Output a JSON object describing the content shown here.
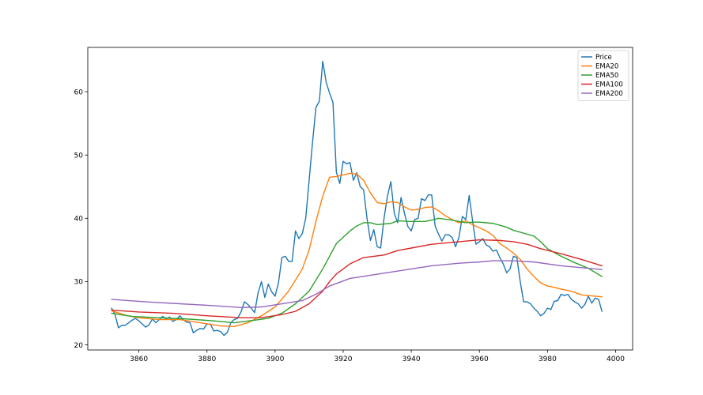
{
  "chart_data": {
    "type": "line",
    "title": "",
    "xlabel": "",
    "ylabel": "",
    "xlim": [
      3845,
      4005
    ],
    "ylim": [
      19.2,
      67.0
    ],
    "x_ticks": [
      3860,
      3880,
      3900,
      3920,
      3940,
      3960,
      3980,
      4000
    ],
    "y_ticks": [
      20,
      30,
      40,
      50,
      60
    ],
    "grid": false,
    "legend_position": "upper right",
    "series": [
      {
        "name": "Price",
        "color": "#1f77b4",
        "points": [
          [
            3852,
            25.8
          ],
          [
            3853,
            24.8
          ],
          [
            3854,
            22.7
          ],
          [
            3855,
            23.1
          ],
          [
            3856,
            23.1
          ],
          [
            3857,
            23.5
          ],
          [
            3858,
            23.9
          ],
          [
            3859,
            24.2
          ],
          [
            3860,
            23.8
          ],
          [
            3861,
            23.3
          ],
          [
            3862,
            22.8
          ],
          [
            3863,
            23.2
          ],
          [
            3864,
            24.1
          ],
          [
            3865,
            23.5
          ],
          [
            3866,
            24.0
          ],
          [
            3867,
            24.5
          ],
          [
            3868,
            24.1
          ],
          [
            3869,
            24.4
          ],
          [
            3870,
            23.7
          ],
          [
            3871,
            24.0
          ],
          [
            3872,
            24.6
          ],
          [
            3873,
            24.0
          ],
          [
            3874,
            23.6
          ],
          [
            3875,
            23.5
          ],
          [
            3876,
            21.9
          ],
          [
            3877,
            22.3
          ],
          [
            3878,
            22.6
          ],
          [
            3879,
            22.5
          ],
          [
            3880,
            23.3
          ],
          [
            3881,
            23.3
          ],
          [
            3882,
            22.2
          ],
          [
            3883,
            22.3
          ],
          [
            3884,
            22.1
          ],
          [
            3885,
            21.5
          ],
          [
            3886,
            22.0
          ],
          [
            3887,
            23.5
          ],
          [
            3888,
            24.0
          ],
          [
            3889,
            24.2
          ],
          [
            3890,
            25.2
          ],
          [
            3891,
            26.8
          ],
          [
            3892,
            26.4
          ],
          [
            3893,
            25.8
          ],
          [
            3894,
            25.1
          ],
          [
            3895,
            28.2
          ],
          [
            3896,
            30.0
          ],
          [
            3897,
            27.5
          ],
          [
            3898,
            29.6
          ],
          [
            3899,
            28.4
          ],
          [
            3900,
            27.7
          ],
          [
            3901,
            29.8
          ],
          [
            3902,
            33.8
          ],
          [
            3903,
            34.0
          ],
          [
            3904,
            33.2
          ],
          [
            3905,
            33.2
          ],
          [
            3906,
            38.0
          ],
          [
            3907,
            36.8
          ],
          [
            3908,
            37.6
          ],
          [
            3909,
            40.0
          ],
          [
            3910,
            46.0
          ],
          [
            3911,
            52.0
          ],
          [
            3912,
            57.5
          ],
          [
            3913,
            58.5
          ],
          [
            3914,
            64.8
          ],
          [
            3915,
            61.5
          ],
          [
            3916,
            59.8
          ],
          [
            3917,
            58.3
          ],
          [
            3918,
            47.3
          ],
          [
            3919,
            45.5
          ],
          [
            3920,
            49.0
          ],
          [
            3921,
            48.6
          ],
          [
            3922,
            48.8
          ],
          [
            3923,
            46.0
          ],
          [
            3924,
            47.2
          ],
          [
            3925,
            45.0
          ],
          [
            3926,
            44.5
          ],
          [
            3927,
            40.0
          ],
          [
            3928,
            36.5
          ],
          [
            3929,
            38.2
          ],
          [
            3930,
            35.5
          ],
          [
            3931,
            35.3
          ],
          [
            3932,
            40.0
          ],
          [
            3933,
            43.5
          ],
          [
            3934,
            45.8
          ],
          [
            3935,
            40.8
          ],
          [
            3936,
            39.3
          ],
          [
            3937,
            43.3
          ],
          [
            3938,
            40.8
          ],
          [
            3939,
            38.7
          ],
          [
            3940,
            38.0
          ],
          [
            3941,
            39.8
          ],
          [
            3942,
            40.0
          ],
          [
            3943,
            43.1
          ],
          [
            3944,
            42.8
          ],
          [
            3945,
            43.7
          ],
          [
            3946,
            43.7
          ],
          [
            3947,
            38.8
          ],
          [
            3948,
            37.5
          ],
          [
            3949,
            36.4
          ],
          [
            3950,
            37.4
          ],
          [
            3951,
            37.4
          ],
          [
            3952,
            37.0
          ],
          [
            3953,
            35.5
          ],
          [
            3954,
            37.0
          ],
          [
            3955,
            40.3
          ],
          [
            3956,
            39.8
          ],
          [
            3957,
            43.6
          ],
          [
            3958,
            39.6
          ],
          [
            3959,
            35.9
          ],
          [
            3960,
            36.3
          ],
          [
            3961,
            36.8
          ],
          [
            3962,
            35.8
          ],
          [
            3963,
            35.5
          ],
          [
            3964,
            34.8
          ],
          [
            3965,
            35.0
          ],
          [
            3966,
            33.8
          ],
          [
            3967,
            32.8
          ],
          [
            3968,
            31.4
          ],
          [
            3969,
            32.0
          ],
          [
            3970,
            34.0
          ],
          [
            3971,
            33.8
          ],
          [
            3972,
            30.0
          ],
          [
            3973,
            26.8
          ],
          [
            3974,
            26.8
          ],
          [
            3975,
            26.5
          ],
          [
            3976,
            25.8
          ],
          [
            3977,
            25.3
          ],
          [
            3978,
            24.6
          ],
          [
            3979,
            25.0
          ],
          [
            3980,
            25.8
          ],
          [
            3981,
            25.6
          ],
          [
            3982,
            26.9
          ],
          [
            3983,
            27.0
          ],
          [
            3984,
            28.0
          ],
          [
            3985,
            27.8
          ],
          [
            3986,
            28.0
          ],
          [
            3987,
            27.2
          ],
          [
            3988,
            26.8
          ],
          [
            3989,
            26.5
          ],
          [
            3990,
            25.8
          ],
          [
            3991,
            26.4
          ],
          [
            3992,
            27.7
          ],
          [
            3993,
            26.6
          ],
          [
            3994,
            27.4
          ],
          [
            3995,
            27.2
          ],
          [
            3996,
            25.3
          ]
        ]
      },
      {
        "name": "EMA20",
        "color": "#ff7f0e",
        "points": [
          [
            3852,
            25.4
          ],
          [
            3856,
            24.7
          ],
          [
            3860,
            24.3
          ],
          [
            3866,
            24.0
          ],
          [
            3872,
            24.0
          ],
          [
            3878,
            23.5
          ],
          [
            3884,
            23.0
          ],
          [
            3888,
            22.9
          ],
          [
            3892,
            23.5
          ],
          [
            3896,
            24.6
          ],
          [
            3900,
            26.0
          ],
          [
            3904,
            28.5
          ],
          [
            3908,
            32.0
          ],
          [
            3910,
            35.0
          ],
          [
            3912,
            39.5
          ],
          [
            3914,
            43.5
          ],
          [
            3916,
            46.5
          ],
          [
            3918,
            46.6
          ],
          [
            3922,
            47.1
          ],
          [
            3924,
            47.0
          ],
          [
            3926,
            46.0
          ],
          [
            3928,
            44.0
          ],
          [
            3930,
            42.5
          ],
          [
            3932,
            42.3
          ],
          [
            3934,
            42.6
          ],
          [
            3936,
            42.5
          ],
          [
            3938,
            41.8
          ],
          [
            3940,
            41.3
          ],
          [
            3942,
            41.4
          ],
          [
            3944,
            41.7
          ],
          [
            3946,
            41.8
          ],
          [
            3948,
            41.2
          ],
          [
            3950,
            40.4
          ],
          [
            3952,
            39.8
          ],
          [
            3954,
            39.3
          ],
          [
            3956,
            39.6
          ],
          [
            3958,
            39.0
          ],
          [
            3960,
            38.5
          ],
          [
            3962,
            38.0
          ],
          [
            3964,
            37.3
          ],
          [
            3966,
            36.0
          ],
          [
            3968,
            35.3
          ],
          [
            3970,
            34.5
          ],
          [
            3972,
            33.5
          ],
          [
            3974,
            32.0
          ],
          [
            3976,
            30.8
          ],
          [
            3978,
            29.8
          ],
          [
            3980,
            29.3
          ],
          [
            3982,
            29.1
          ],
          [
            3984,
            28.8
          ],
          [
            3986,
            28.6
          ],
          [
            3988,
            28.3
          ],
          [
            3990,
            27.9
          ],
          [
            3992,
            27.8
          ],
          [
            3994,
            27.7
          ],
          [
            3996,
            27.6
          ]
        ]
      },
      {
        "name": "EMA50",
        "color": "#2ca02c",
        "points": [
          [
            3852,
            25.0
          ],
          [
            3858,
            24.5
          ],
          [
            3866,
            24.3
          ],
          [
            3874,
            24.1
          ],
          [
            3882,
            23.8
          ],
          [
            3888,
            23.5
          ],
          [
            3894,
            23.9
          ],
          [
            3898,
            24.2
          ],
          [
            3902,
            25.0
          ],
          [
            3906,
            26.5
          ],
          [
            3910,
            28.5
          ],
          [
            3914,
            32.0
          ],
          [
            3916,
            34.0
          ],
          [
            3918,
            36.0
          ],
          [
            3920,
            37.0
          ],
          [
            3922,
            38.0
          ],
          [
            3924,
            38.8
          ],
          [
            3926,
            39.3
          ],
          [
            3928,
            39.3
          ],
          [
            3930,
            39.0
          ],
          [
            3934,
            39.2
          ],
          [
            3936,
            39.6
          ],
          [
            3940,
            39.5
          ],
          [
            3944,
            39.5
          ],
          [
            3946,
            39.7
          ],
          [
            3948,
            40.0
          ],
          [
            3952,
            39.7
          ],
          [
            3956,
            39.3
          ],
          [
            3958,
            39.4
          ],
          [
            3960,
            39.4
          ],
          [
            3964,
            39.2
          ],
          [
            3968,
            38.6
          ],
          [
            3970,
            38.1
          ],
          [
            3974,
            37.5
          ],
          [
            3976,
            37.2
          ],
          [
            3978,
            36.3
          ],
          [
            3980,
            35.2
          ],
          [
            3984,
            34.0
          ],
          [
            3988,
            33.0
          ],
          [
            3992,
            32.1
          ],
          [
            3996,
            30.8
          ]
        ]
      },
      {
        "name": "EMA100",
        "color": "#d62728",
        "points": [
          [
            3852,
            25.5
          ],
          [
            3860,
            25.2
          ],
          [
            3870,
            25.0
          ],
          [
            3880,
            24.6
          ],
          [
            3890,
            24.3
          ],
          [
            3896,
            24.3
          ],
          [
            3902,
            24.8
          ],
          [
            3906,
            25.3
          ],
          [
            3910,
            26.5
          ],
          [
            3914,
            28.5
          ],
          [
            3916,
            30.0
          ],
          [
            3918,
            31.2
          ],
          [
            3922,
            32.8
          ],
          [
            3926,
            33.8
          ],
          [
            3932,
            34.2
          ],
          [
            3936,
            34.9
          ],
          [
            3940,
            35.3
          ],
          [
            3946,
            35.9
          ],
          [
            3952,
            36.2
          ],
          [
            3956,
            36.4
          ],
          [
            3960,
            36.6
          ],
          [
            3966,
            36.5
          ],
          [
            3970,
            36.3
          ],
          [
            3974,
            35.9
          ],
          [
            3978,
            35.2
          ],
          [
            3984,
            34.4
          ],
          [
            3990,
            33.5
          ],
          [
            3996,
            32.5
          ]
        ]
      },
      {
        "name": "EMA200",
        "color": "#9467bd",
        "points": [
          [
            3852,
            27.2
          ],
          [
            3862,
            26.8
          ],
          [
            3872,
            26.5
          ],
          [
            3882,
            26.2
          ],
          [
            3890,
            25.9
          ],
          [
            3896,
            26.0
          ],
          [
            3902,
            26.5
          ],
          [
            3908,
            27.0
          ],
          [
            3912,
            28.0
          ],
          [
            3916,
            29.3
          ],
          [
            3922,
            30.5
          ],
          [
            3928,
            31.0
          ],
          [
            3934,
            31.5
          ],
          [
            3940,
            32.0
          ],
          [
            3946,
            32.5
          ],
          [
            3954,
            32.9
          ],
          [
            3960,
            33.1
          ],
          [
            3964,
            33.3
          ],
          [
            3970,
            33.3
          ],
          [
            3976,
            33.1
          ],
          [
            3984,
            32.5
          ],
          [
            3990,
            32.2
          ],
          [
            3996,
            31.9
          ]
        ]
      }
    ]
  }
}
